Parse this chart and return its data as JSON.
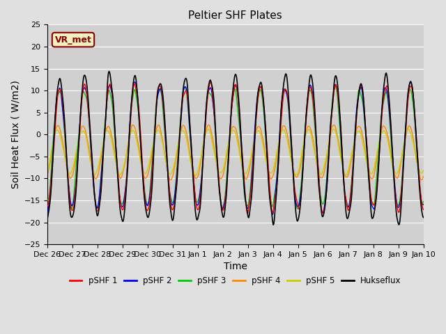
{
  "title": "Peltier SHF Plates",
  "xlabel": "Time",
  "ylabel": "Soil Heat Flux ( W/m2)",
  "ylim": [
    -25,
    25
  ],
  "background_color": "#e8e8e8",
  "plot_bg_color": "#d8d8d8",
  "legend_entries": [
    "pSHF 1",
    "pSHF 2",
    "pSHF 3",
    "pSHF 4",
    "pSHF 5",
    "Hukseflux"
  ],
  "legend_colors": [
    "#ff0000",
    "#0000ff",
    "#00cc00",
    "#ff8800",
    "#cccc00",
    "#000000"
  ],
  "annotation_text": "VR_met",
  "annotation_color": "#8b0000",
  "annotation_bg": "#f5f0c0",
  "tick_labels": [
    "Dec 26",
    "Dec 27",
    "Dec 28",
    "Dec 29",
    "Dec 30",
    "Dec 31",
    "Jan 1",
    "Jan 2",
    "Jan 3",
    "Jan 4",
    "Jan 5",
    "Jan 6",
    "Jan 7",
    "Jan 8",
    "Jan 9",
    "Jan 10"
  ],
  "yticks": [
    -25,
    -20,
    -15,
    -10,
    -5,
    0,
    5,
    10,
    15,
    20,
    25
  ]
}
